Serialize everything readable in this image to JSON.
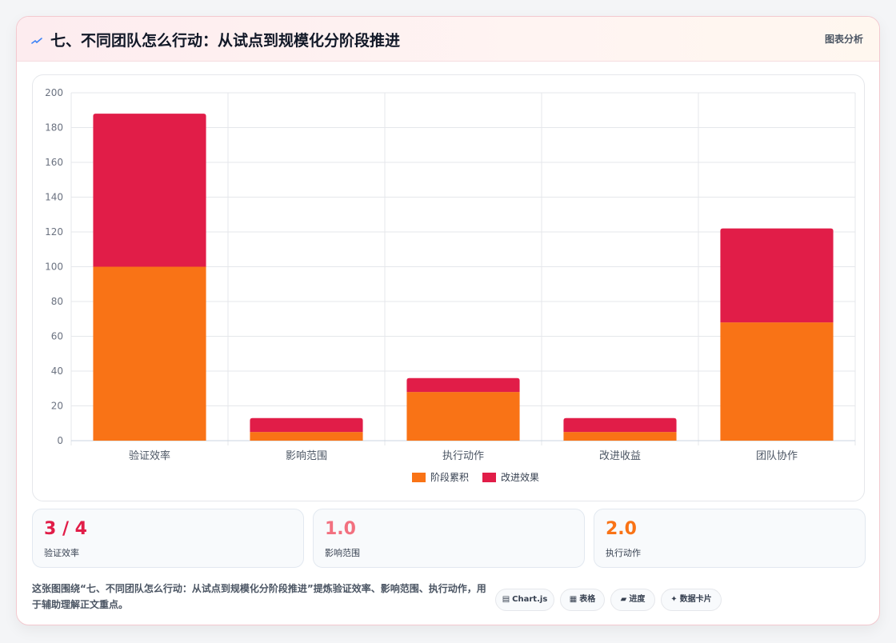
{
  "header": {
    "title": "七、不同团队怎么行动：从试点到规模化分阶段推进",
    "action_label": "图表分析"
  },
  "chart_data": {
    "type": "bar",
    "stacked": true,
    "categories": [
      "验证效率",
      "影响范围",
      "执行动作",
      "改进收益",
      "团队协作"
    ],
    "series": [
      {
        "name": "阶段累积",
        "values": [
          100,
          5,
          28,
          5,
          68
        ],
        "color": "#f97316"
      },
      {
        "name": "改进效果",
        "values": [
          88,
          8,
          8,
          8,
          54
        ],
        "color": "#e11d48"
      }
    ],
    "ylim": [
      0,
      200
    ],
    "yticks": [
      "0",
      "20",
      "40",
      "60",
      "80",
      "100",
      "120",
      "140",
      "160",
      "180",
      "200"
    ],
    "grid": true,
    "legend_position": "bottom-center"
  },
  "stats": [
    {
      "value": "3 / 4",
      "label": "验证效率",
      "color": "#e11d48"
    },
    {
      "value": "1.0",
      "label": "影响范围",
      "color": "#f2707f"
    },
    {
      "value": "2.0",
      "label": "执行动作",
      "color": "#f97316"
    }
  ],
  "footer": {
    "description": "这张图围绕“七、不同团队怎么行动：从试点到规模化分阶段推进”提炼验证效率、影响范围、执行动作，用于辅助理解正文重点。",
    "tags": [
      {
        "icon": "▤",
        "label": "Chart.js",
        "icon_name": "chart-icon"
      },
      {
        "icon": "▦",
        "label": "表格",
        "icon_name": "table-icon"
      },
      {
        "icon": "▰",
        "label": "进度",
        "icon_name": "progress-icon"
      },
      {
        "icon": "✦",
        "label": "数据卡片",
        "icon_name": "sparkle-icon"
      }
    ]
  }
}
